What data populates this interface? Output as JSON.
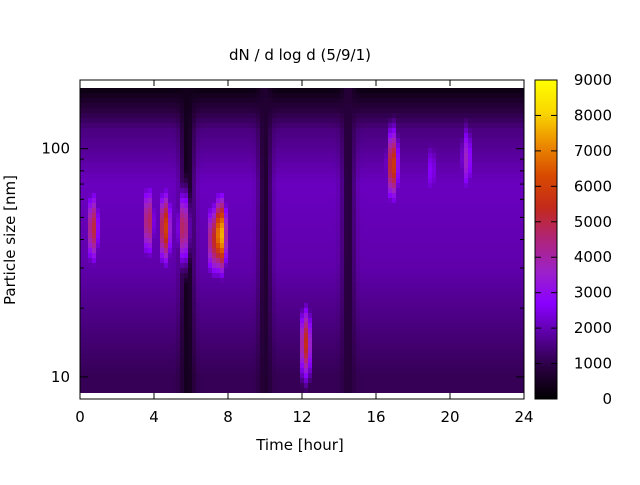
{
  "chart_data": {
    "type": "heatmap",
    "title": "dN / d log d (5/9/1)",
    "xlabel": "Time [hour]",
    "ylabel": "Particle size [nm]",
    "xlim": [
      0,
      24
    ],
    "xticks": [
      0,
      4,
      8,
      12,
      16,
      20,
      24
    ],
    "ylim": [
      8,
      200
    ],
    "yscale": "log",
    "yticks": [
      10,
      100
    ],
    "colorbar": {
      "range": [
        0,
        9000
      ],
      "ticks": [
        0,
        1000,
        2000,
        3000,
        4000,
        5000,
        6000,
        7000,
        8000,
        9000
      ],
      "colormap": [
        "#000000",
        "#2a0040",
        "#5a00a0",
        "#8a00ff",
        "#9c22c8",
        "#b0247a",
        "#c32a1c",
        "#d84a00",
        "#ec8c00",
        "#fad800",
        "#ffff00"
      ]
    },
    "grid": false,
    "background_level": [
      {
        "d": 10,
        "value": 1100
      },
      {
        "d": 30,
        "value": 1900
      },
      {
        "d": 70,
        "value": 2100
      },
      {
        "d": 120,
        "value": 1500
      },
      {
        "d": 180,
        "value": 300
      }
    ],
    "hotspots": [
      {
        "time": 0.7,
        "d": 45,
        "value": 5200
      },
      {
        "time": 3.7,
        "d": 48,
        "value": 5000
      },
      {
        "time": 4.6,
        "d": 45,
        "value": 6100
      },
      {
        "time": 5.6,
        "d": 45,
        "value": 5000
      },
      {
        "time": 7.2,
        "d": 40,
        "value": 5400
      },
      {
        "time": 7.6,
        "d": 42,
        "value": 8000
      },
      {
        "time": 12.2,
        "d": 14,
        "value": 5500
      },
      {
        "time": 16.9,
        "d": 85,
        "value": 6000
      },
      {
        "time": 20.9,
        "d": 90,
        "value": 3700
      },
      {
        "time": 19.0,
        "d": 80,
        "value": 2800
      }
    ],
    "low_band": [
      {
        "time": 5.8,
        "value": 400
      },
      {
        "time": 10.0,
        "value": 700
      },
      {
        "time": 14.5,
        "value": 800
      }
    ]
  }
}
